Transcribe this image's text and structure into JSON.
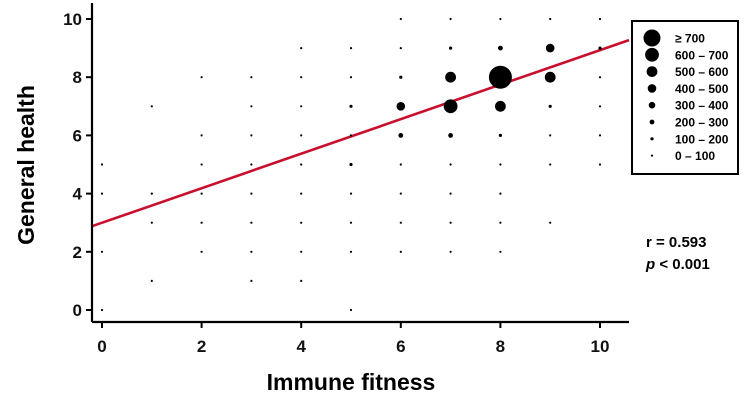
{
  "chart_data": {
    "type": "scatter",
    "xlabel": "Immune fitness",
    "ylabel": "General health",
    "xlim": [
      -0.5,
      10.5
    ],
    "ylim": [
      -0.35,
      10.5
    ],
    "xticks": [
      "0",
      "2",
      "4",
      "6",
      "8",
      "10"
    ],
    "yticks": [
      "0",
      "2",
      "4",
      "6",
      "8",
      "10"
    ],
    "grid": false,
    "legend_position": "top-right",
    "legend": [
      {
        "label": "≥   700",
        "size_class": 7
      },
      {
        "label": "600 – 700",
        "size_class": 6
      },
      {
        "label": "500 – 600",
        "size_class": 5
      },
      {
        "label": "400 – 500",
        "size_class": 4
      },
      {
        "label": "300 – 400",
        "size_class": 3
      },
      {
        "label": "200 – 300",
        "size_class": 2
      },
      {
        "label": "100 – 200",
        "size_class": 1
      },
      {
        "label": "0 – 100",
        "size_class": 0
      }
    ],
    "regression_line": {
      "intercept": 3.0,
      "slope": 0.593,
      "color": "#c8102e"
    },
    "stats": {
      "r": "r = 0.593",
      "p_prefix": "p",
      "p_rest": " < 0.001"
    },
    "points": [
      {
        "x": 0,
        "y": 0,
        "s": 0
      },
      {
        "x": 0,
        "y": 2,
        "s": 0
      },
      {
        "x": 0,
        "y": 4,
        "s": 0
      },
      {
        "x": 0,
        "y": 5,
        "s": 0
      },
      {
        "x": 1,
        "y": 1,
        "s": 0
      },
      {
        "x": 1,
        "y": 3,
        "s": 0
      },
      {
        "x": 1,
        "y": 4,
        "s": 0
      },
      {
        "x": 1,
        "y": 7,
        "s": 0
      },
      {
        "x": 2,
        "y": 2,
        "s": 0
      },
      {
        "x": 2,
        "y": 3,
        "s": 0
      },
      {
        "x": 2,
        "y": 4,
        "s": 0
      },
      {
        "x": 2,
        "y": 5,
        "s": 0
      },
      {
        "x": 2,
        "y": 6,
        "s": 0
      },
      {
        "x": 2,
        "y": 8,
        "s": 0
      },
      {
        "x": 3,
        "y": 1,
        "s": 0
      },
      {
        "x": 3,
        "y": 2,
        "s": 0
      },
      {
        "x": 3,
        "y": 3,
        "s": 0
      },
      {
        "x": 3,
        "y": 4,
        "s": 0
      },
      {
        "x": 3,
        "y": 5,
        "s": 0
      },
      {
        "x": 3,
        "y": 6,
        "s": 0
      },
      {
        "x": 3,
        "y": 7,
        "s": 0
      },
      {
        "x": 3,
        "y": 8,
        "s": 0
      },
      {
        "x": 4,
        "y": 1,
        "s": 0
      },
      {
        "x": 4,
        "y": 2,
        "s": 0
      },
      {
        "x": 4,
        "y": 3,
        "s": 0
      },
      {
        "x": 4,
        "y": 4,
        "s": 0
      },
      {
        "x": 4,
        "y": 5,
        "s": 0
      },
      {
        "x": 4,
        "y": 6,
        "s": 0
      },
      {
        "x": 4,
        "y": 7,
        "s": 0
      },
      {
        "x": 4,
        "y": 8,
        "s": 0
      },
      {
        "x": 4,
        "y": 9,
        "s": 0
      },
      {
        "x": 5,
        "y": 0,
        "s": 0
      },
      {
        "x": 5,
        "y": 2,
        "s": 0
      },
      {
        "x": 5,
        "y": 3,
        "s": 0
      },
      {
        "x": 5,
        "y": 4,
        "s": 0
      },
      {
        "x": 5,
        "y": 5,
        "s": 1
      },
      {
        "x": 5,
        "y": 6,
        "s": 0
      },
      {
        "x": 5,
        "y": 7,
        "s": 1
      },
      {
        "x": 5,
        "y": 8,
        "s": 0
      },
      {
        "x": 5,
        "y": 9,
        "s": 0
      },
      {
        "x": 6,
        "y": 2,
        "s": 0
      },
      {
        "x": 6,
        "y": 3,
        "s": 0
      },
      {
        "x": 6,
        "y": 4,
        "s": 0
      },
      {
        "x": 6,
        "y": 5,
        "s": 0
      },
      {
        "x": 6,
        "y": 6,
        "s": 2
      },
      {
        "x": 6,
        "y": 7,
        "s": 4
      },
      {
        "x": 6,
        "y": 8,
        "s": 1
      },
      {
        "x": 6,
        "y": 9,
        "s": 0
      },
      {
        "x": 6,
        "y": 10,
        "s": 0
      },
      {
        "x": 7,
        "y": 2,
        "s": 0
      },
      {
        "x": 7,
        "y": 3,
        "s": 0
      },
      {
        "x": 7,
        "y": 4,
        "s": 0
      },
      {
        "x": 7,
        "y": 5,
        "s": 0
      },
      {
        "x": 7,
        "y": 6,
        "s": 2
      },
      {
        "x": 7,
        "y": 7,
        "s": 6
      },
      {
        "x": 7,
        "y": 8,
        "s": 5
      },
      {
        "x": 7,
        "y": 9,
        "s": 1
      },
      {
        "x": 7,
        "y": 10,
        "s": 0
      },
      {
        "x": 8,
        "y": 2,
        "s": 0
      },
      {
        "x": 8,
        "y": 3,
        "s": 0
      },
      {
        "x": 8,
        "y": 4,
        "s": 0
      },
      {
        "x": 8,
        "y": 5,
        "s": 0
      },
      {
        "x": 8,
        "y": 6,
        "s": 1
      },
      {
        "x": 8,
        "y": 7,
        "s": 5
      },
      {
        "x": 8,
        "y": 8,
        "s": 7
      },
      {
        "x": 8,
        "y": 9,
        "s": 2
      },
      {
        "x": 8,
        "y": 10,
        "s": 0
      },
      {
        "x": 9,
        "y": 3,
        "s": 0
      },
      {
        "x": 9,
        "y": 5,
        "s": 0
      },
      {
        "x": 9,
        "y": 6,
        "s": 0
      },
      {
        "x": 9,
        "y": 7,
        "s": 1
      },
      {
        "x": 9,
        "y": 8,
        "s": 5
      },
      {
        "x": 9,
        "y": 9,
        "s": 4
      },
      {
        "x": 9,
        "y": 10,
        "s": 0
      },
      {
        "x": 10,
        "y": 5,
        "s": 0
      },
      {
        "x": 10,
        "y": 6,
        "s": 0
      },
      {
        "x": 10,
        "y": 7,
        "s": 0
      },
      {
        "x": 10,
        "y": 8,
        "s": 0
      },
      {
        "x": 10,
        "y": 9,
        "s": 1
      },
      {
        "x": 10,
        "y": 10,
        "s": 0
      }
    ]
  }
}
